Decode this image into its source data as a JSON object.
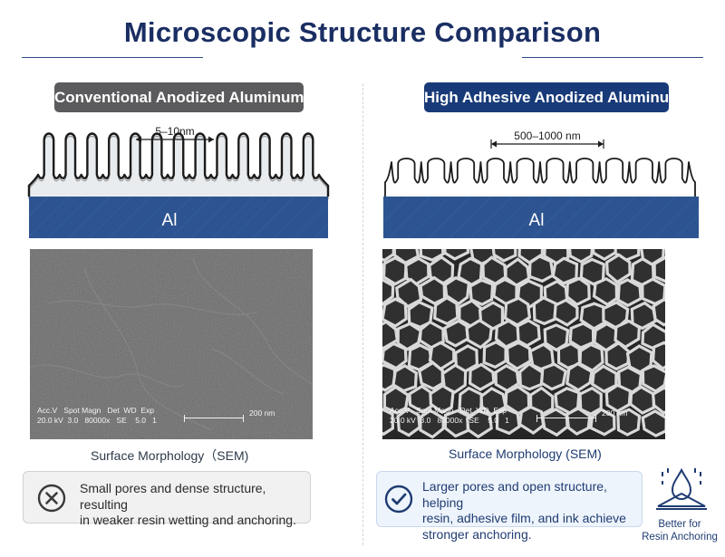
{
  "title": "Microscopic Structure Comparison",
  "left": {
    "label": "Conventional Anodized Aluminum",
    "dimension": "5–10nm",
    "substrate": "Al",
    "sem": {
      "meta_line1": "Acc.V   Spot Magn   Det  WD  Exp",
      "meta_line2": "20.0 kV  3.0   80000x   SE    5.0   1",
      "scale": "200 nm"
    },
    "caption": "Surface Morphology（SEM)",
    "note_line1": "Small pores and dense structure, resulting",
    "note_line2": "in weaker resin wetting and anchoring.",
    "note_icon": "x-circle-icon"
  },
  "right": {
    "label": "High Adhesive Anodized Aluminum",
    "dimension": "500–1000 nm",
    "substrate": "Al",
    "sem": {
      "meta_line1": "Acc.V   Spot Magn   Det  WD  Exp",
      "meta_line2": "20.0 kV  3.0   80000x   SE    5.0   1",
      "scale": "200 nm"
    },
    "caption": "Surface Morphology (SEM)",
    "note_line1": "Larger pores and open structure, helping",
    "note_line2": "resin, adhesive film, and ink achieve",
    "note_line3": "stronger anchoring.",
    "note_icon": "check-circle-icon"
  },
  "badge": {
    "line1": "Better for",
    "line2": "Resin Anchoring",
    "icon": "resin-drop-icon"
  },
  "colors": {
    "title": "#1a2e63",
    "substrate": "#2d5491",
    "left_pill": "#5b5b5d",
    "right_pill": "#183a78"
  }
}
